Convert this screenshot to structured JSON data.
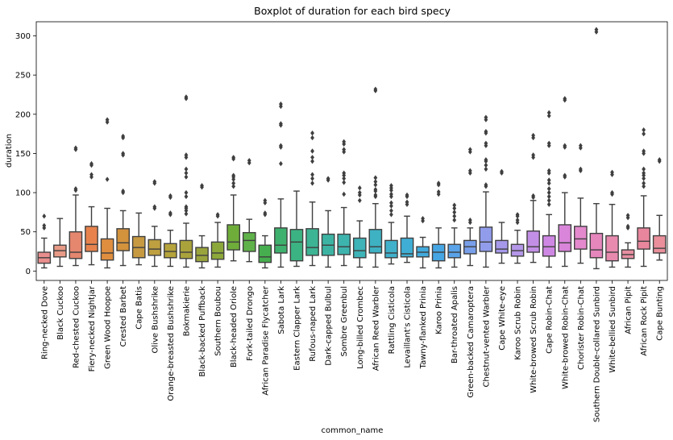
{
  "chart_data": {
    "type": "boxplot",
    "title": "Boxplot of duration for each bird specy",
    "xlabel": "common_name",
    "ylabel": "duration",
    "ylim": [
      -12,
      318
    ],
    "yticks": [
      0,
      50,
      100,
      150,
      200,
      250,
      300
    ],
    "grid": false,
    "legend": "none",
    "categories": [
      "Ring-necked Dove",
      "Black Cuckoo",
      "Red-chested Cuckoo",
      "Fiery-necked Nightjar",
      "Green Wood Hoopoe",
      "Crested Barbet",
      "Cape Batis",
      "Olive Bushshrike",
      "Orange-breasted Bushshrike",
      "Bokmakierie",
      "Black-backed Puffback",
      "Southern Boubou",
      "Black-headed Oriole",
      "Fork-tailed Drongo",
      "African Paradise Flycatcher",
      "Sabota Lark",
      "Eastern Clapper Lark",
      "Rufous-naped Lark",
      "Dark-capped Bulbul",
      "Sombre Greenbul",
      "Long-billed Crombec",
      "African Reed Warbler",
      "Rattling Cisticola",
      "Levaillant's Cisticola",
      "Tawny-flanked Prinia",
      "Karoo Prinia",
      "Bar-throated Apalis",
      "Green-backed Camaroptera",
      "Chestnut-vented Warbler",
      "Cape White-eye",
      "Karoo Scrub Robin",
      "White-browed Scrub Robin",
      "Cape Robin-Chat",
      "White-browed Robin-Chat",
      "Chorister Robin-Chat",
      "Southern Double-collared Sunbird",
      "White-bellied Sunbird",
      "African Pipit",
      "African Rock Pipit",
      "Cape Bunting"
    ],
    "boxes": [
      {
        "whislo": 4,
        "q1": 10,
        "med": 17,
        "q3": 24,
        "whishi": 42,
        "fliers": [
          55,
          58,
          70
        ]
      },
      {
        "whislo": 6,
        "q1": 18,
        "med": 26,
        "q3": 33,
        "whishi": 67,
        "fliers": []
      },
      {
        "whislo": 7,
        "q1": 16,
        "med": 24,
        "q3": 50,
        "whishi": 97,
        "fliers": [
          103,
          105,
          155,
          157
        ]
      },
      {
        "whislo": 8,
        "q1": 25,
        "med": 34,
        "q3": 57,
        "whishi": 82,
        "fliers": [
          120,
          123,
          135,
          137
        ]
      },
      {
        "whislo": 4,
        "q1": 14,
        "med": 23,
        "q3": 41,
        "whishi": 80,
        "fliers": [
          117,
          190,
          193
        ]
      },
      {
        "whislo": 7,
        "q1": 26,
        "med": 36,
        "q3": 54,
        "whishi": 77,
        "fliers": [
          100,
          102,
          148,
          150,
          170,
          172
        ]
      },
      {
        "whislo": 8,
        "q1": 17,
        "med": 30,
        "q3": 44,
        "whishi": 74,
        "fliers": []
      },
      {
        "whislo": 6,
        "q1": 20,
        "med": 28,
        "q3": 40,
        "whishi": 57,
        "fliers": [
          80,
          82,
          112,
          114
        ]
      },
      {
        "whislo": 6,
        "q1": 17,
        "med": 25,
        "q3": 35,
        "whishi": 52,
        "fliers": [
          72,
          74,
          94,
          96
        ]
      },
      {
        "whislo": 5,
        "q1": 16,
        "med": 24,
        "q3": 39,
        "whishi": 61,
        "fliers": [
          73,
          77,
          80,
          82,
          95,
          100,
          120,
          125,
          130,
          145,
          148,
          220,
          222
        ]
      },
      {
        "whislo": 4,
        "q1": 12,
        "med": 20,
        "q3": 30,
        "whishi": 45,
        "fliers": [
          107,
          109
        ]
      },
      {
        "whislo": 5,
        "q1": 15,
        "med": 23,
        "q3": 37,
        "whishi": 62,
        "fliers": [
          70,
          72
        ]
      },
      {
        "whislo": 13,
        "q1": 27,
        "med": 37,
        "q3": 59,
        "whishi": 97,
        "fliers": [
          108,
          112,
          117,
          120,
          122,
          143,
          145
        ]
      },
      {
        "whislo": 12,
        "q1": 25,
        "med": 39,
        "q3": 49,
        "whishi": 66,
        "fliers": [
          138,
          141
        ]
      },
      {
        "whislo": 4,
        "q1": 11,
        "med": 18,
        "q3": 33,
        "whishi": 45,
        "fliers": [
          72,
          74,
          87,
          90
        ]
      },
      {
        "whislo": 5,
        "q1": 23,
        "med": 33,
        "q3": 55,
        "whishi": 92,
        "fliers": [
          137,
          158,
          160,
          186,
          188,
          210,
          213
        ]
      },
      {
        "whislo": 6,
        "q1": 13,
        "med": 37,
        "q3": 53,
        "whishi": 102,
        "fliers": []
      },
      {
        "whislo": 7,
        "q1": 20,
        "med": 30,
        "q3": 54,
        "whishi": 88,
        "fliers": [
          112,
          118,
          123,
          140,
          145,
          153,
          170,
          176
        ]
      },
      {
        "whislo": 5,
        "q1": 20,
        "med": 33,
        "q3": 47,
        "whishi": 77,
        "fliers": [
          116,
          118
        ]
      },
      {
        "whislo": 7,
        "q1": 21,
        "med": 31,
        "q3": 47,
        "whishi": 81,
        "fliers": [
          98,
          113,
          118,
          122,
          125,
          152,
          155,
          162,
          165
        ]
      },
      {
        "whislo": 5,
        "q1": 17,
        "med": 26,
        "q3": 42,
        "whishi": 64,
        "fliers": [
          90,
          97,
          100,
          106
        ]
      },
      {
        "whislo": 5,
        "q1": 23,
        "med": 31,
        "q3": 53,
        "whishi": 86,
        "fliers": [
          95,
          97,
          102,
          104,
          110,
          114,
          119,
          230,
          232
        ]
      },
      {
        "whislo": 9,
        "q1": 17,
        "med": 23,
        "q3": 39,
        "whishi": 62,
        "fliers": [
          72,
          77,
          83,
          87,
          95,
          98,
          103,
          106,
          109
        ]
      },
      {
        "whislo": 11,
        "q1": 18,
        "med": 22,
        "q3": 42,
        "whishi": 70,
        "fliers": [
          85,
          88,
          95,
          97
        ]
      },
      {
        "whislo": 4,
        "q1": 18,
        "med": 24,
        "q3": 31,
        "whishi": 43,
        "fliers": [
          64,
          67
        ]
      },
      {
        "whislo": 4,
        "q1": 13,
        "med": 24,
        "q3": 34,
        "whishi": 55,
        "fliers": [
          98,
          101,
          110,
          112
        ]
      },
      {
        "whislo": 5,
        "q1": 17,
        "med": 24,
        "q3": 34,
        "whishi": 55,
        "fliers": [
          65,
          70,
          75,
          80,
          84
        ]
      },
      {
        "whislo": 7,
        "q1": 22,
        "med": 31,
        "q3": 39,
        "whishi": 55,
        "fliers": [
          62,
          65,
          125,
          128,
          152,
          155
        ]
      },
      {
        "whislo": 5,
        "q1": 25,
        "med": 37,
        "q3": 56,
        "whishi": 101,
        "fliers": [
          108,
          110,
          130,
          135,
          140,
          142,
          160,
          163,
          176,
          178,
          193,
          196
        ]
      },
      {
        "whislo": 10,
        "q1": 23,
        "med": 28,
        "q3": 39,
        "whishi": 62,
        "fliers": [
          125,
          127
        ]
      },
      {
        "whislo": 10,
        "q1": 19,
        "med": 26,
        "q3": 34,
        "whishi": 52,
        "fliers": [
          62,
          65,
          70,
          72
        ]
      },
      {
        "whislo": 11,
        "q1": 24,
        "med": 31,
        "q3": 51,
        "whishi": 90,
        "fliers": [
          94,
          96,
          145,
          148,
          170,
          173
        ]
      },
      {
        "whislo": 5,
        "q1": 19,
        "med": 31,
        "q3": 45,
        "whishi": 72,
        "fliers": [
          85,
          90,
          95,
          100,
          105,
          112,
          116,
          125,
          128,
          160,
          163,
          198,
          202
        ]
      },
      {
        "whislo": 6,
        "q1": 25,
        "med": 36,
        "q3": 59,
        "whishi": 100,
        "fliers": [
          120,
          122,
          158,
          160,
          218,
          220
        ]
      },
      {
        "whislo": 10,
        "q1": 28,
        "med": 41,
        "q3": 57,
        "whishi": 93,
        "fliers": [
          128,
          130,
          157,
          160
        ]
      },
      {
        "whislo": 3,
        "q1": 17,
        "med": 27,
        "q3": 48,
        "whishi": 86,
        "fliers": [
          305,
          308
        ]
      },
      {
        "whislo": 5,
        "q1": 13,
        "med": 24,
        "q3": 45,
        "whishi": 85,
        "fliers": [
          98,
          100,
          123,
          126
        ]
      },
      {
        "whislo": 5,
        "q1": 16,
        "med": 21,
        "q3": 27,
        "whishi": 36,
        "fliers": [
          55,
          57,
          68,
          71
        ]
      },
      {
        "whislo": 6,
        "q1": 28,
        "med": 38,
        "q3": 55,
        "whishi": 96,
        "fliers": [
          108,
          112,
          118,
          122,
          125,
          130,
          150,
          153,
          175,
          180
        ]
      },
      {
        "whislo": 14,
        "q1": 23,
        "med": 29,
        "q3": 45,
        "whishi": 71,
        "fliers": [
          140,
          142
        ]
      }
    ],
    "colors": [
      "#e98d8d",
      "#e79a86",
      "#e5866e",
      "#e7824d",
      "#df8e3f",
      "#d3923c",
      "#c79a42",
      "#bea040",
      "#b5a33c",
      "#aaa33c",
      "#9aa43c",
      "#8ca83a",
      "#6fad3a",
      "#5fb24a",
      "#46ae4e",
      "#3eb16e",
      "#3cb382",
      "#3db494",
      "#3db4a3",
      "#3eb4ae",
      "#3eb3b8",
      "#3eb1c2",
      "#40b0cb",
      "#40aed4",
      "#42abdd",
      "#45a6e3",
      "#5aa3e8",
      "#789fe9",
      "#919deb",
      "#a699ea",
      "#b497e8",
      "#c28fe6",
      "#cf87e4",
      "#d985d9",
      "#e489cd",
      "#e586bd",
      "#e88aae",
      "#e78fa1",
      "#e8869d",
      "#ea8f9b"
    ]
  }
}
